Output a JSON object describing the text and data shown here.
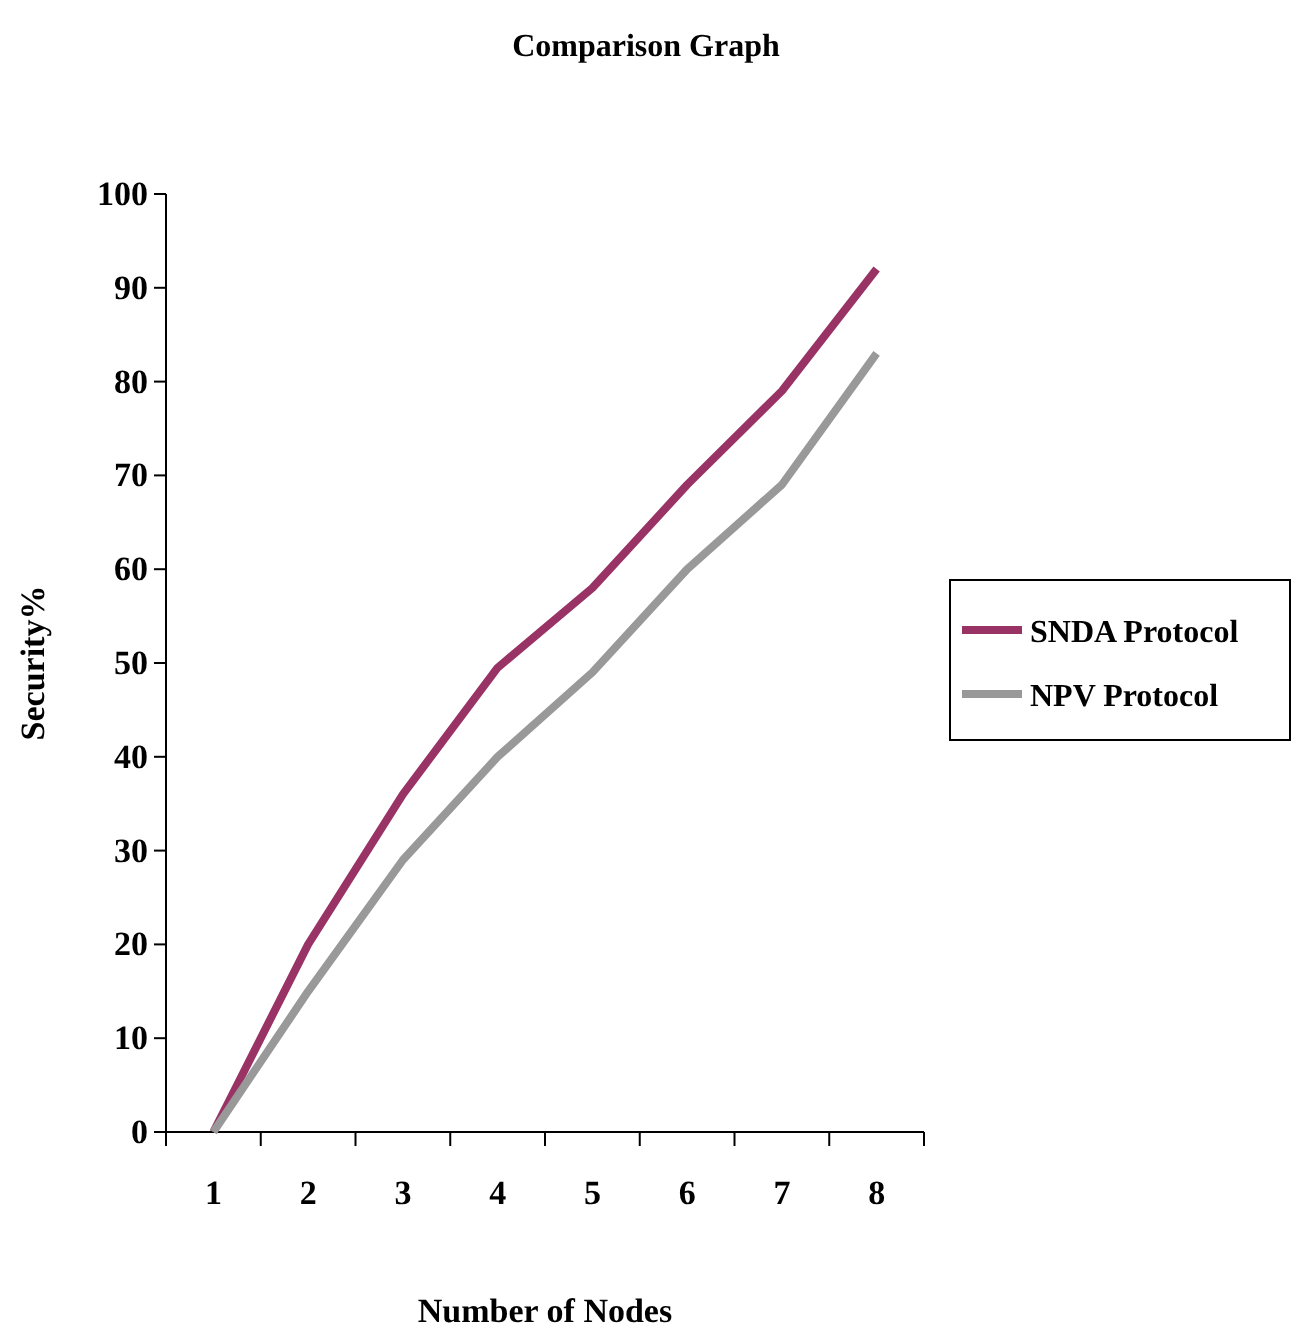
{
  "chart_data": {
    "type": "line",
    "title": "Comparison Graph",
    "xlabel": "Number of Nodes",
    "ylabel": "Security%",
    "categories": [
      "1",
      "2",
      "3",
      "4",
      "5",
      "6",
      "7",
      "8"
    ],
    "series": [
      {
        "name": "SNDA Protocol",
        "color": "#993366",
        "values": [
          0,
          20,
          36,
          49.5,
          58,
          69,
          79,
          92
        ]
      },
      {
        "name": "NPV Protocol",
        "color": "#999999",
        "values": [
          0,
          15,
          29,
          40,
          49,
          60,
          69,
          83
        ]
      }
    ],
    "ylim": [
      0,
      100
    ],
    "yticks": [
      0,
      10,
      20,
      30,
      40,
      50,
      60,
      70,
      80,
      90,
      100
    ],
    "grid": false,
    "legend": "right",
    "marker": "none",
    "line_style": "solid"
  }
}
